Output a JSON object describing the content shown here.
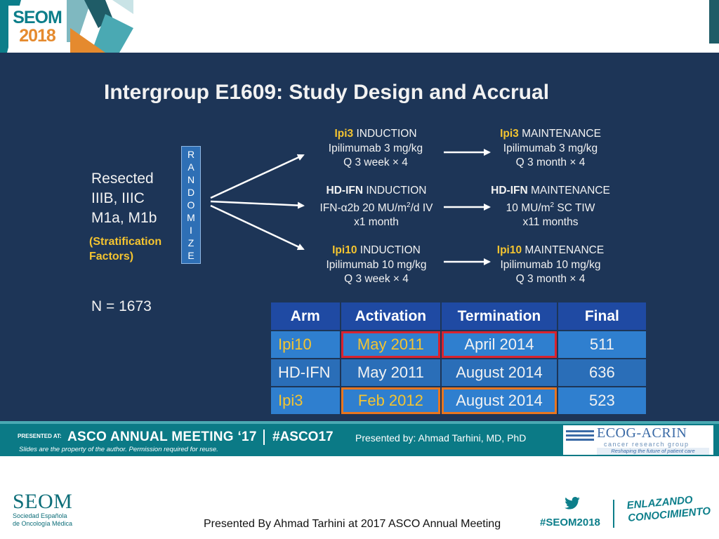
{
  "header": {
    "logo_line1": "SEOM",
    "logo_line2": "2018"
  },
  "slide": {
    "title": "Intergroup E1609: Study Design and Accrual",
    "population": [
      "Resected",
      "IIIB, IIIC",
      "M1a, M1b"
    ],
    "stratification": [
      "(Stratification",
      "Factors)"
    ],
    "n_label": "N = 1673",
    "randomize_letters": [
      "R",
      "A",
      "N",
      "D",
      "O",
      "M",
      "I",
      "Z",
      "E"
    ],
    "arms": [
      {
        "induction": {
          "name": "Ipi3",
          "label": " INDUCTION",
          "line2": "Ipilimumab 3 mg/kg",
          "line3": "Q 3 week × 4"
        },
        "maintenance": {
          "name": "Ipi3",
          "label": " MAINTENANCE",
          "line2": "Ipilimumab 3 mg/kg",
          "line3": "Q 3 month × 4"
        }
      },
      {
        "induction": {
          "name": "HD-IFN",
          "label": " INDUCTION",
          "line2a": "IFN-α2b 20 MU/m",
          "line2sup": "2",
          "line2b": "/d IV",
          "line3": "x1 month"
        },
        "maintenance": {
          "name": "HD-IFN",
          "label": " MAINTENANCE",
          "line2a": "10 MU/m",
          "line2sup": "2",
          "line2b": " SC TIW",
          "line3": "x11 months"
        }
      },
      {
        "induction": {
          "name": "Ipi10",
          "label": " INDUCTION",
          "line2": "Ipilimumab 10 mg/kg",
          "line3": "Q 3 week × 4"
        },
        "maintenance": {
          "name": "Ipi10",
          "label": " MAINTENANCE",
          "line2": "Ipilimumab 10 mg/kg",
          "line3": "Q 3 month × 4"
        }
      }
    ],
    "table": {
      "headers": [
        "Arm",
        "Activation",
        "Termination",
        "Final"
      ],
      "rows": [
        [
          "Ipi10",
          "May 2011",
          "April 2014",
          "511"
        ],
        [
          "HD-IFN",
          "May 2011",
          "August 2014",
          "636"
        ],
        [
          "Ipi3",
          "Feb 2012",
          "August 2014",
          "523"
        ]
      ]
    }
  },
  "footer_bar": {
    "presented_at": "PRESENTED AT:",
    "meeting": "ASCO ANNUAL MEETING ‘17",
    "hashtag": "#ASCO17",
    "presented_by": "Presented by: Ahmad Tarhini, MD, PhD",
    "note": "Slides are the property of the author. Permission required for reuse.",
    "ecog_name": "ECOG-ACRIN",
    "ecog_sub": "cancer research group",
    "ecog_tag": "Reshaping the future of patient care"
  },
  "bottom": {
    "seom_big": "SEOM",
    "seom_lines": [
      "Sociedad Española",
      "de Oncología Médica"
    ],
    "presented": "Presented By Ahmad Tarhini at 2017 ASCO Annual Meeting",
    "hashtag": "#SEOM2018",
    "slogan": [
      "ENLAZANDO",
      "CONOCIMIENTO"
    ]
  },
  "colors": {
    "slide_bg": "#1d3557",
    "highlight": "#f4c430",
    "teal": "#0b7a86",
    "red_box": "#d9232e",
    "orange_box": "#e8761f"
  }
}
